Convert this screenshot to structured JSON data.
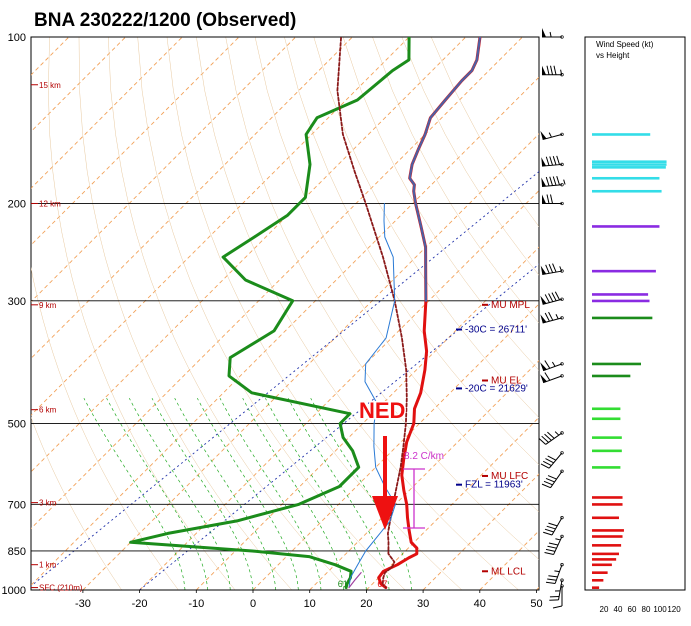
{
  "title": "BNA   230222/1200  (Observed)",
  "chart_data": {
    "type": "line",
    "diagram": "skew-T log-P",
    "pressure_levels": [
      100,
      200,
      300,
      500,
      700,
      850,
      1000
    ],
    "pressure_labels": [
      "100",
      "200",
      "300",
      "500",
      "700",
      "850",
      "1000"
    ],
    "temp_ticks": [
      -30,
      -20,
      -10,
      0,
      10,
      20,
      30,
      40,
      50
    ],
    "height_labels": [
      {
        "label": "15 km",
        "p": 122
      },
      {
        "label": "12 km",
        "p": 200
      },
      {
        "label": "9 km",
        "p": 305
      },
      {
        "label": "6 km",
        "p": 472
      },
      {
        "label": "3 km",
        "p": 695
      },
      {
        "label": "1 km",
        "p": 900
      },
      {
        "label": "SFC (210m)",
        "p": 990
      }
    ],
    "series": [
      {
        "color": "#e01010",
        "points": [
          [
            990,
            23.0
          ],
          [
            975,
            21.5
          ],
          [
            950,
            20.0
          ],
          [
            925,
            19.7
          ],
          [
            900,
            21.0
          ],
          [
            875,
            21.8
          ],
          [
            860,
            22.5
          ],
          [
            840,
            21.5
          ],
          [
            820,
            19.5
          ],
          [
            780,
            17.0
          ],
          [
            740,
            14.5
          ],
          [
            700,
            12.0
          ],
          [
            660,
            9.0
          ],
          [
            620,
            6.0
          ],
          [
            580,
            3.5
          ],
          [
            540,
            1.0
          ],
          [
            500,
            -1.0
          ],
          [
            470,
            -3.5
          ],
          [
            440,
            -5.2
          ],
          [
            400,
            -8.5
          ],
          [
            370,
            -11.5
          ],
          [
            340,
            -15.5
          ],
          [
            300,
            -20.5
          ],
          [
            270,
            -25.0
          ],
          [
            240,
            -30.0
          ],
          [
            220,
            -34.5
          ],
          [
            200,
            -39.5
          ],
          [
            190,
            -42.0
          ],
          [
            185,
            -43.0
          ],
          [
            180,
            -45.0
          ],
          [
            170,
            -47.0
          ],
          [
            160,
            -48.5
          ],
          [
            150,
            -50.0
          ],
          [
            140,
            -52.0
          ],
          [
            130,
            -52.5
          ],
          [
            120,
            -53.0
          ],
          [
            115,
            -53.0
          ],
          [
            110,
            -54.0
          ],
          [
            100,
            -57.5
          ]
        ]
      },
      {
        "color": "#1b8c1b",
        "points": [
          [
            990,
            16.0
          ],
          [
            975,
            15.5
          ],
          [
            950,
            15.0
          ],
          [
            925,
            14.0
          ],
          [
            900,
            10.0
          ],
          [
            870,
            4.0
          ],
          [
            850,
            -7.0
          ],
          [
            820,
            -30.0
          ],
          [
            790,
            -25.0
          ],
          [
            750,
            -15.0
          ],
          [
            700,
            -7.0
          ],
          [
            650,
            -3.0
          ],
          [
            600,
            -3.0
          ],
          [
            560,
            -7.0
          ],
          [
            530,
            -11.0
          ],
          [
            500,
            -14.0
          ],
          [
            480,
            -14.0
          ],
          [
            440,
            -35.0
          ],
          [
            410,
            -42.0
          ],
          [
            380,
            -45.0
          ],
          [
            340,
            -42.0
          ],
          [
            300,
            -44.0
          ],
          [
            275,
            -56.0
          ],
          [
            250,
            -64.0
          ],
          [
            230,
            -62.0
          ],
          [
            210,
            -60.0
          ],
          [
            195,
            -60.0
          ],
          [
            170,
            -65.0
          ],
          [
            150,
            -71.0
          ],
          [
            140,
            -72.0
          ],
          [
            130,
            -68.0
          ],
          [
            115,
            -67.0
          ],
          [
            110,
            -66.0
          ],
          [
            100,
            -70.0
          ]
        ]
      },
      {
        "color": "#8b1a1a",
        "points": [
          [
            990,
            23.0
          ],
          [
            975,
            21.8
          ],
          [
            950,
            20.8
          ],
          [
            930,
            20.2
          ],
          [
            910,
            20.5
          ],
          [
            890,
            20.0
          ],
          [
            860,
            17.5
          ],
          [
            820,
            15.5
          ],
          [
            790,
            13.8
          ],
          [
            750,
            12.0
          ],
          [
            700,
            9.6
          ],
          [
            650,
            7.1
          ],
          [
            600,
            4.4
          ],
          [
            550,
            1.2
          ],
          [
            500,
            -2.4
          ],
          [
            450,
            -6.7
          ],
          [
            400,
            -11.8
          ],
          [
            350,
            -18.2
          ],
          [
            300,
            -26.0
          ],
          [
            250,
            -35.8
          ],
          [
            200,
            -48.3
          ],
          [
            175,
            -55.9
          ],
          [
            150,
            -64.5
          ],
          [
            125,
            -73.2
          ],
          [
            100,
            -82.0
          ]
        ]
      },
      {
        "color": "#2a7ad5",
        "points": [
          [
            990,
            16.5
          ],
          [
            950,
            15.0
          ],
          [
            900,
            14.0
          ],
          [
            850,
            13.0
          ],
          [
            800,
            12.5
          ],
          [
            750,
            12.0
          ],
          [
            700,
            10.0
          ],
          [
            650,
            5.0
          ],
          [
            600,
            0.0
          ],
          [
            550,
            -4.0
          ],
          [
            500,
            -8.0
          ],
          [
            460,
            -11.0
          ],
          [
            420,
            -17.0
          ],
          [
            390,
            -20.0
          ],
          [
            350,
            -21.0
          ],
          [
            300,
            -26.0
          ],
          [
            250,
            -34.0
          ],
          [
            230,
            -39.0
          ],
          [
            215,
            -42.0
          ],
          [
            200,
            -45.0
          ]
        ]
      },
      {
        "color": "#4d60a3",
        "points": [
          [
            300,
            -20.5
          ],
          [
            270,
            -25.0
          ],
          [
            240,
            -30.0
          ],
          [
            220,
            -34.5
          ],
          [
            200,
            -39.5
          ],
          [
            190,
            -42.0
          ],
          [
            185,
            -43.0
          ],
          [
            180,
            -45.0
          ],
          [
            170,
            -47.0
          ],
          [
            160,
            -48.5
          ],
          [
            150,
            -50.0
          ],
          [
            140,
            -52.0
          ],
          [
            130,
            -52.5
          ],
          [
            120,
            -53.0
          ],
          [
            115,
            -53.0
          ],
          [
            110,
            -54.0
          ],
          [
            100,
            -57.5
          ]
        ]
      },
      {
        "color": "#a042a0",
        "points": [
          [
            990,
            16.5
          ],
          [
            960,
            16.2
          ],
          [
            930,
            16.0
          ]
        ]
      }
    ],
    "surface_labels": [
      {
        "text": "61",
        "p": 1000,
        "t": 16,
        "color": "#1b8c1b"
      },
      {
        "text": "67",
        "p": 1000,
        "t": 23,
        "color": "#e01010"
      }
    ]
  },
  "annotations": [
    {
      "text": "MU  MPL",
      "p": 305,
      "color": "#b30000"
    },
    {
      "text": "-30C = 26711'",
      "p": 338,
      "color": "#00008b"
    },
    {
      "text": "MU  EL",
      "p": 418,
      "color": "#b30000"
    },
    {
      "text": "-20C = 21629'",
      "p": 432,
      "color": "#00008b"
    },
    {
      "text": "MU  LFC",
      "p": 622,
      "color": "#b30000"
    },
    {
      "text": "FZL = 11963'",
      "p": 645,
      "color": "#00008b"
    },
    {
      "text": "ML  LCL",
      "p": 925,
      "color": "#b30000"
    }
  ],
  "lapse_rate": {
    "text": "8.2 C/km",
    "color": "#cc33cc"
  },
  "ned_label": "NED",
  "wind_speed_panel": {
    "title_line1": "Wind Speed (kt)",
    "title_line2": "vs Height",
    "axis_ticks": [
      "20",
      "40",
      "60",
      "80",
      "100",
      "120"
    ],
    "bars": [
      {
        "color": "#33dde8",
        "value": 82,
        "p": 150
      },
      {
        "color": "#33dde8",
        "value": 105,
        "p": 168
      },
      {
        "color": "#33dde8",
        "value": 105,
        "p": 170
      },
      {
        "color": "#33dde8",
        "value": 104,
        "p": 172
      },
      {
        "color": "#33dde8",
        "value": 95,
        "p": 180
      },
      {
        "color": "#33dde8",
        "value": 98,
        "p": 190
      },
      {
        "color": "#8a2be2",
        "value": 95,
        "p": 220
      },
      {
        "color": "#8a2be2",
        "value": 90,
        "p": 265
      },
      {
        "color": "#8a2be2",
        "value": 79,
        "p": 292
      },
      {
        "color": "#8a2be2",
        "value": 81,
        "p": 300
      },
      {
        "color": "#1b8c1b",
        "value": 85,
        "p": 322
      },
      {
        "color": "#1b8c1b",
        "value": 69,
        "p": 390
      },
      {
        "color": "#1b8c1b",
        "value": 54,
        "p": 410
      },
      {
        "color": "#33dd33",
        "value": 40,
        "p": 470
      },
      {
        "color": "#33dd33",
        "value": 40,
        "p": 490
      },
      {
        "color": "#33dd33",
        "value": 42,
        "p": 530
      },
      {
        "color": "#33dd33",
        "value": 42,
        "p": 560
      },
      {
        "color": "#33dd33",
        "value": 40,
        "p": 600
      },
      {
        "color": "#e01010",
        "value": 43,
        "p": 680
      },
      {
        "color": "#e01010",
        "value": 43,
        "p": 700
      },
      {
        "color": "#e01010",
        "value": 38,
        "p": 740
      },
      {
        "color": "#e01010",
        "value": 45,
        "p": 780
      },
      {
        "color": "#e01010",
        "value": 43,
        "p": 800
      },
      {
        "color": "#e01010",
        "value": 41,
        "p": 830
      },
      {
        "color": "#e01010",
        "value": 38,
        "p": 860
      },
      {
        "color": "#e01010",
        "value": 34,
        "p": 880
      },
      {
        "color": "#e01010",
        "value": 28,
        "p": 900
      },
      {
        "color": "#e01010",
        "value": 22,
        "p": 930
      },
      {
        "color": "#e01010",
        "value": 16,
        "p": 960
      },
      {
        "color": "#e01010",
        "value": 10,
        "p": 990
      }
    ]
  },
  "wind_barbs": [
    {
      "p": 100,
      "dir": 270,
      "spd": 55
    },
    {
      "p": 117,
      "dir": 270,
      "spd": 85
    },
    {
      "p": 150,
      "dir": 255,
      "spd": 55
    },
    {
      "p": 170,
      "dir": 265,
      "spd": 90
    },
    {
      "p": 185,
      "dir": 265,
      "spd": 95
    },
    {
      "p": 200,
      "dir": 270,
      "spd": 70
    },
    {
      "p": 265,
      "dir": 260,
      "spd": 85
    },
    {
      "p": 298,
      "dir": 255,
      "spd": 90
    },
    {
      "p": 322,
      "dir": 255,
      "spd": 75
    },
    {
      "p": 390,
      "dir": 250,
      "spd": 65
    },
    {
      "p": 410,
      "dir": 250,
      "spd": 60
    },
    {
      "p": 520,
      "dir": 235,
      "spd": 45
    },
    {
      "p": 565,
      "dir": 220,
      "spd": 40
    },
    {
      "p": 610,
      "dir": 215,
      "spd": 40
    },
    {
      "p": 740,
      "dir": 210,
      "spd": 40
    },
    {
      "p": 800,
      "dir": 205,
      "spd": 45
    },
    {
      "p": 900,
      "dir": 200,
      "spd": 35
    },
    {
      "p": 960,
      "dir": 190,
      "spd": 25
    },
    {
      "p": 1000,
      "dir": 180,
      "spd": 10
    }
  ]
}
